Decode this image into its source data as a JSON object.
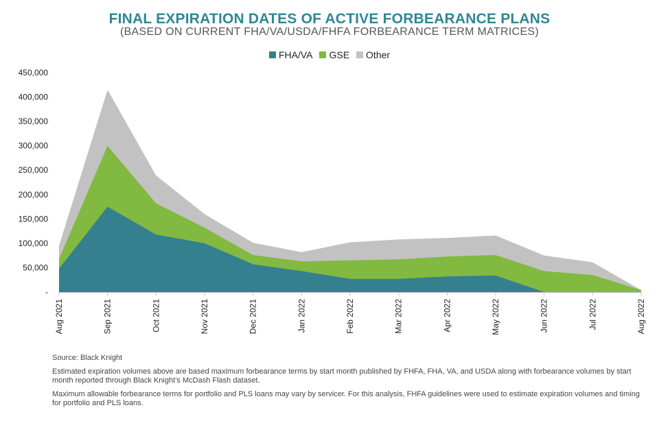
{
  "title": "FINAL EXPIRATION DATES OF ACTIVE FORBEARANCE PLANS",
  "subtitle": "(BASED ON CURRENT FHA/VA/USDA/FHFA FORBEARANCE TERM MATRICES)",
  "chart_data": {
    "type": "area",
    "stacked": true,
    "categories": [
      "Aug 2021",
      "Sep 2021",
      "Oct 2021",
      "Nov 2021",
      "Dec 2021",
      "Jan 2022",
      "Feb 2022",
      "Mar 2022",
      "Apr 2022",
      "May 2022",
      "Jun 2022",
      "Jul 2022",
      "Aug 2022"
    ],
    "series": [
      {
        "name": "FHA/VA",
        "color": "#34808f",
        "values": [
          48000,
          175000,
          118000,
          100000,
          57000,
          43000,
          27000,
          27000,
          32000,
          34000,
          0,
          0,
          0
        ]
      },
      {
        "name": "GSE",
        "color": "#82b941",
        "values": [
          20000,
          125000,
          64000,
          32000,
          19000,
          20000,
          38000,
          40000,
          41000,
          42000,
          43000,
          35000,
          4000
        ]
      },
      {
        "name": "Other",
        "color": "#c2c2c2",
        "values": [
          27000,
          115000,
          57000,
          28000,
          25000,
          19000,
          37000,
          41000,
          38000,
          40000,
          32000,
          26000,
          0
        ]
      }
    ],
    "ylim": [
      0,
      450000
    ],
    "yticks": [
      0,
      50000,
      100000,
      150000,
      200000,
      250000,
      300000,
      350000,
      400000,
      450000
    ],
    "ytick_labels": [
      "-",
      "50,000",
      "100,000",
      "150,000",
      "200,000",
      "250,000",
      "300,000",
      "350,000",
      "400,000",
      "450,000"
    ],
    "legend_position": "top-center",
    "xlabel": "",
    "ylabel": ""
  },
  "footnotes": {
    "source": "Source: Black Knight",
    "note1": "Estimated expiration volumes above are based maximum forbearance terms by start month published by FHFA, FHA, VA, and USDA along with forbearance volumes by start month reported through Black Knight’s McDash Flash dataset.",
    "note2": "Maximum allowable forbearance terms for portfolio and PLS loans may vary by servicer. For this analysis, FHFA guidelines were used to estimate expiration volumes and timing for portfolio and PLS loans."
  }
}
